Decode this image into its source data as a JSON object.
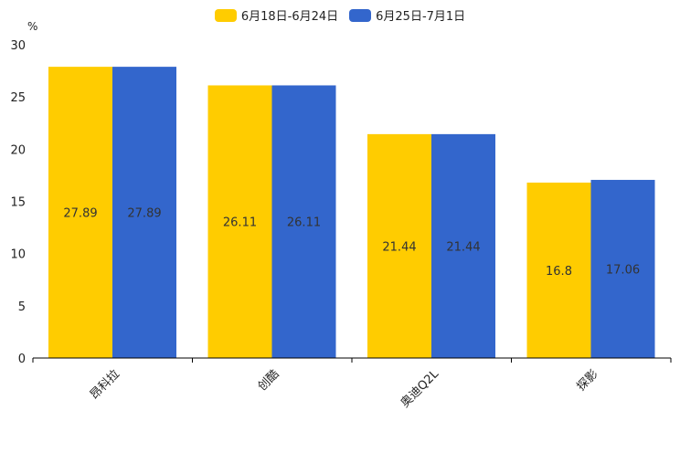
{
  "chart_data": {
    "type": "bar",
    "title": "",
    "ylabel": "%",
    "xlabel": "",
    "categories": [
      "昂科拉",
      "创酷",
      "奥迪Q2L",
      "探影"
    ],
    "series": [
      {
        "name": "6月18日-6月24日",
        "color": "#FFCC00",
        "values": [
          27.89,
          26.11,
          21.44,
          16.8
        ],
        "labels": [
          "27.89",
          "26.11",
          "21.44",
          "16.8"
        ]
      },
      {
        "name": "6月25日-7月1日",
        "color": "#3366CC",
        "values": [
          27.89,
          26.11,
          21.44,
          17.06
        ],
        "labels": [
          "27.89",
          "26.11",
          "21.44",
          "17.06"
        ]
      }
    ],
    "ylim": [
      0,
      30
    ],
    "yticks": [
      "0",
      "5",
      "10",
      "15",
      "20",
      "25",
      "30"
    ],
    "legend": "top-center",
    "grid": false
  }
}
